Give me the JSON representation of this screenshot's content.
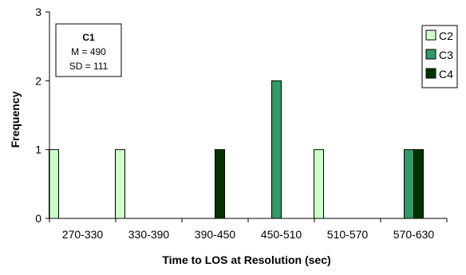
{
  "chart_data": {
    "type": "bar",
    "xlabel": "Time to LOS at Resolution (sec)",
    "ylabel": "Frequency",
    "ylim": [
      0,
      3
    ],
    "yticks": [
      "0",
      "1",
      "2",
      "3"
    ],
    "categories": [
      "270-330",
      "330-390",
      "390-450",
      "450-510",
      "510-570",
      "570-630"
    ],
    "series": [
      {
        "name": "C2",
        "color": "#ccffcc",
        "values": [
          1,
          1,
          0,
          0,
          1,
          0
        ]
      },
      {
        "name": "C3",
        "color": "#339966",
        "values": [
          0,
          0,
          0,
          2,
          0,
          1
        ]
      },
      {
        "name": "C4",
        "color": "#003300",
        "values": [
          0,
          0,
          1,
          0,
          0,
          1
        ]
      }
    ],
    "legend_position": "top-right",
    "grid": false,
    "stats_box": {
      "title": "C1",
      "line1": "M = 490",
      "line2": "SD = 111"
    }
  }
}
